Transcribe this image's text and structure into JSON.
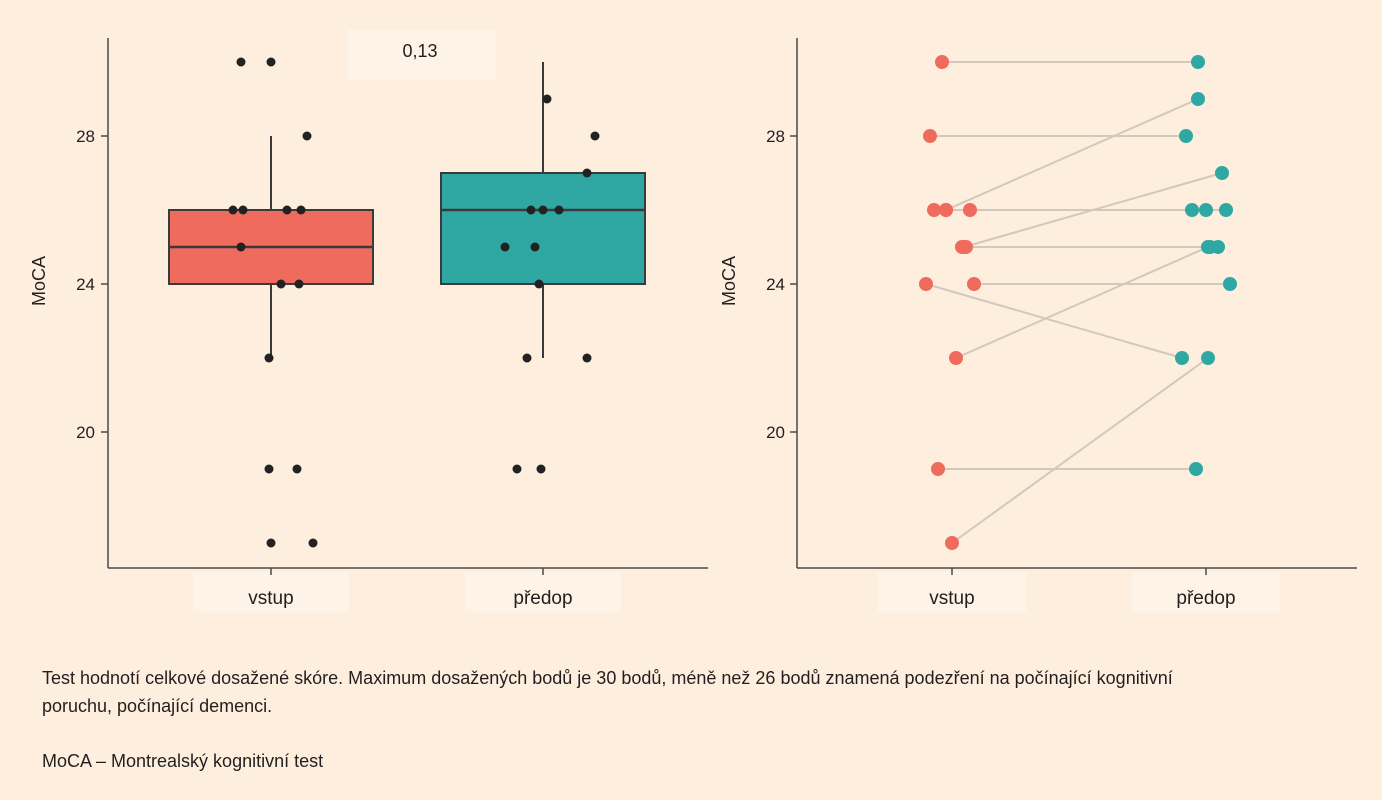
{
  "chart_data": [
    {
      "type": "box",
      "ylabel": "MoCA",
      "categories": [
        "vstup",
        "předop"
      ],
      "yticks": [
        20,
        24,
        28
      ],
      "ylim": [
        16.5,
        31.0
      ],
      "annotation": "0,13",
      "colors": [
        "#ef6b5e",
        "#2fa8a4"
      ],
      "boxes": [
        {
          "category": "vstup",
          "q1": 24,
          "median": 25,
          "q3": 26,
          "whisker_low": 22,
          "whisker_high": 28
        },
        {
          "category": "předop",
          "q1": 24,
          "median": 26,
          "q3": 27,
          "whisker_low": 22,
          "whisker_high": 30
        }
      ],
      "points": [
        {
          "category": "vstup",
          "values": [
            30,
            30,
            28,
            26,
            26,
            26,
            26,
            25,
            24,
            24,
            22,
            19,
            19,
            17,
            17
          ]
        },
        {
          "category": "předop",
          "values": [
            29,
            28,
            27,
            26,
            26,
            26,
            25,
            25,
            24,
            22,
            22,
            19,
            19
          ]
        }
      ]
    },
    {
      "type": "line",
      "subtype": "paired-dot",
      "ylabel": "MoCA",
      "categories": [
        "vstup",
        "předop"
      ],
      "yticks": [
        20,
        24,
        28
      ],
      "ylim": [
        16.5,
        31.0
      ],
      "colors": [
        "#ef6b5e",
        "#2fa8a4"
      ],
      "pairs": [
        [
          30,
          30
        ],
        [
          28,
          28
        ],
        [
          26,
          29
        ],
        [
          26,
          26
        ],
        [
          26,
          26
        ],
        [
          26,
          26
        ],
        [
          25,
          27
        ],
        [
          25,
          25
        ],
        [
          25,
          25
        ],
        [
          24,
          22
        ],
        [
          24,
          24
        ],
        [
          22,
          25
        ],
        [
          19,
          19
        ],
        [
          17,
          22
        ]
      ]
    }
  ],
  "caption": {
    "text1": "Test hodnotí celkové dosažené skóre. Maximum dosažených bodů je 30 bodů, méně než 26 bodů znamená podezření na počínající kognitivní poruchu, počínající demenci.",
    "text2": "MoCA – Montrealský kognitivní test"
  }
}
